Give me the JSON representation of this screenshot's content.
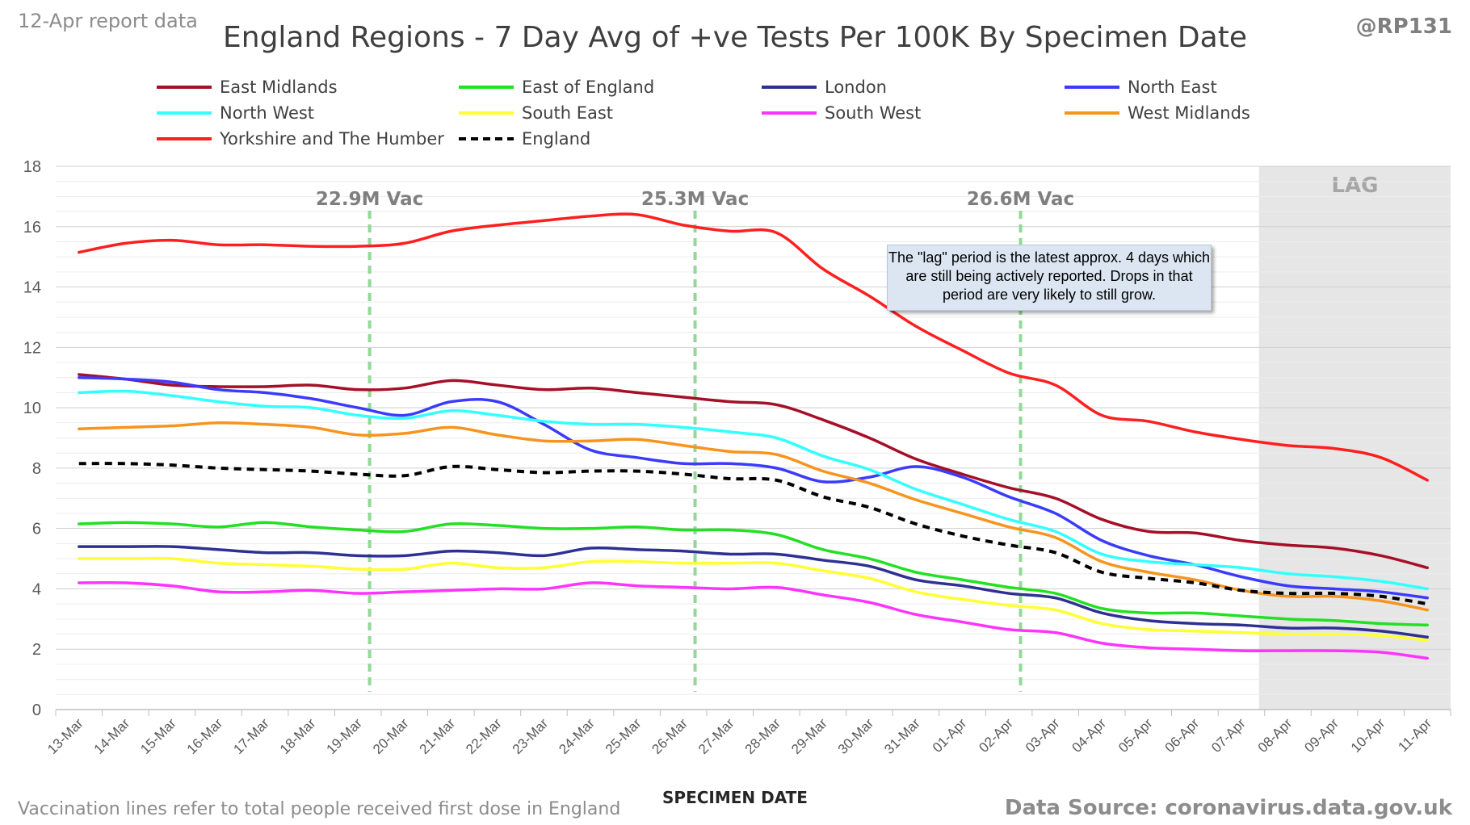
{
  "report_label": "12-Apr report data",
  "handle": "@RP131",
  "footnote": "Vaccination lines refer to total people received first dose in England",
  "source": "Data Source: coronavirus.data.gov.uk",
  "annotation_text": "The \"lag\" period is the latest approx. 4 days which are still being actively reported.  Drops in that period are very likely to still grow.",
  "chart_data": {
    "type": "line",
    "title": "England Regions - 7 Day Avg of +ve Tests Per 100K By Specimen Date",
    "xlabel": "SPECIMEN DATE",
    "ylabel": "",
    "ylim": [
      0,
      18
    ],
    "yticks": [
      0,
      2,
      4,
      6,
      8,
      10,
      12,
      14,
      16,
      18
    ],
    "grid": true,
    "legend_position": "top",
    "categories": [
      "13-Mar",
      "14-Mar",
      "15-Mar",
      "16-Mar",
      "17-Mar",
      "18-Mar",
      "19-Mar",
      "20-Mar",
      "21-Mar",
      "22-Mar",
      "23-Mar",
      "24-Mar",
      "25-Mar",
      "26-Mar",
      "27-Mar",
      "28-Mar",
      "29-Mar",
      "30-Mar",
      "31-Mar",
      "01-Apr",
      "02-Apr",
      "03-Apr",
      "04-Apr",
      "05-Apr",
      "06-Apr",
      "07-Apr",
      "08-Apr",
      "09-Apr",
      "10-Apr",
      "11-Apr"
    ],
    "lag_region": {
      "label": "LAG",
      "from": "08-Apr",
      "to": "11-Apr"
    },
    "vaccination_markers": [
      {
        "label": "22.9M Vac",
        "x": "19-Mar"
      },
      {
        "label": "25.3M Vac",
        "x": "26-Mar"
      },
      {
        "label": "26.6M Vac",
        "x": "02-Apr"
      }
    ],
    "series": [
      {
        "name": "East Midlands",
        "color": "#a50f28",
        "dashed": false,
        "values": [
          11.1,
          10.95,
          10.75,
          10.7,
          10.7,
          10.75,
          10.6,
          10.65,
          10.9,
          10.75,
          10.6,
          10.65,
          10.5,
          10.35,
          10.2,
          10.1,
          9.6,
          9.0,
          8.3,
          7.8,
          7.35,
          7.0,
          6.3,
          5.9,
          5.85,
          5.6,
          5.45,
          5.35,
          5.1,
          4.7
        ]
      },
      {
        "name": "East of England",
        "color": "#22e022",
        "dashed": false,
        "values": [
          6.15,
          6.2,
          6.15,
          6.05,
          6.2,
          6.05,
          5.95,
          5.9,
          6.15,
          6.1,
          6.0,
          6.0,
          6.05,
          5.95,
          5.95,
          5.8,
          5.3,
          5.0,
          4.55,
          4.3,
          4.05,
          3.85,
          3.35,
          3.2,
          3.2,
          3.1,
          3.0,
          2.95,
          2.85,
          2.8
        ]
      },
      {
        "name": "London",
        "color": "#2e3192",
        "dashed": false,
        "values": [
          5.4,
          5.4,
          5.4,
          5.3,
          5.2,
          5.2,
          5.1,
          5.1,
          5.25,
          5.2,
          5.1,
          5.35,
          5.3,
          5.25,
          5.15,
          5.15,
          4.95,
          4.75,
          4.3,
          4.1,
          3.85,
          3.7,
          3.2,
          2.95,
          2.85,
          2.8,
          2.7,
          2.7,
          2.6,
          2.4
        ]
      },
      {
        "name": "North East",
        "color": "#3b3bff",
        "dashed": false,
        "values": [
          11.0,
          10.95,
          10.85,
          10.6,
          10.5,
          10.3,
          10.0,
          9.75,
          10.2,
          10.2,
          9.45,
          8.6,
          8.35,
          8.15,
          8.15,
          8.0,
          7.55,
          7.7,
          8.05,
          7.7,
          7.05,
          6.5,
          5.6,
          5.1,
          4.8,
          4.4,
          4.1,
          4.0,
          3.9,
          3.7
        ]
      },
      {
        "name": "North West",
        "color": "#33ffff",
        "dashed": false,
        "values": [
          10.5,
          10.55,
          10.4,
          10.2,
          10.05,
          10.0,
          9.75,
          9.65,
          9.9,
          9.75,
          9.55,
          9.45,
          9.45,
          9.35,
          9.2,
          9.0,
          8.4,
          7.95,
          7.3,
          6.8,
          6.3,
          5.9,
          5.15,
          4.9,
          4.8,
          4.7,
          4.5,
          4.4,
          4.25,
          4.0
        ]
      },
      {
        "name": "South East",
        "color": "#ffff33",
        "dashed": false,
        "values": [
          5.0,
          5.0,
          5.0,
          4.85,
          4.8,
          4.75,
          4.65,
          4.65,
          4.85,
          4.7,
          4.7,
          4.9,
          4.9,
          4.85,
          4.85,
          4.85,
          4.6,
          4.35,
          3.9,
          3.65,
          3.45,
          3.3,
          2.85,
          2.65,
          2.6,
          2.55,
          2.5,
          2.5,
          2.45,
          2.3
        ]
      },
      {
        "name": "South West",
        "color": "#ff33ff",
        "dashed": false,
        "values": [
          4.2,
          4.2,
          4.1,
          3.9,
          3.9,
          3.95,
          3.85,
          3.9,
          3.95,
          4.0,
          4.0,
          4.2,
          4.1,
          4.05,
          4.0,
          4.05,
          3.8,
          3.55,
          3.15,
          2.9,
          2.65,
          2.55,
          2.2,
          2.05,
          2.0,
          1.95,
          1.95,
          1.95,
          1.9,
          1.7
        ]
      },
      {
        "name": "West Midlands",
        "color": "#f7941d",
        "dashed": false,
        "values": [
          9.3,
          9.35,
          9.4,
          9.5,
          9.45,
          9.35,
          9.1,
          9.15,
          9.35,
          9.1,
          8.9,
          8.9,
          8.95,
          8.75,
          8.55,
          8.45,
          7.9,
          7.5,
          6.95,
          6.5,
          6.05,
          5.7,
          4.9,
          4.55,
          4.3,
          3.95,
          3.75,
          3.75,
          3.6,
          3.3
        ]
      },
      {
        "name": "Yorkshire and The Humber",
        "color": "#ff1f1f",
        "dashed": false,
        "values": [
          15.15,
          15.45,
          15.55,
          15.4,
          15.4,
          15.35,
          15.35,
          15.45,
          15.85,
          16.05,
          16.2,
          16.35,
          16.4,
          16.05,
          15.85,
          15.8,
          14.6,
          13.7,
          12.7,
          11.9,
          11.15,
          10.75,
          9.75,
          9.55,
          9.2,
          8.95,
          8.75,
          8.65,
          8.35,
          7.6
        ]
      },
      {
        "name": "England",
        "color": "#000000",
        "dashed": true,
        "values": [
          8.15,
          8.15,
          8.1,
          8.0,
          7.95,
          7.9,
          7.8,
          7.75,
          8.05,
          7.95,
          7.85,
          7.9,
          7.9,
          7.8,
          7.65,
          7.6,
          7.05,
          6.7,
          6.15,
          5.75,
          5.45,
          5.2,
          4.55,
          4.35,
          4.2,
          3.95,
          3.85,
          3.85,
          3.75,
          3.5
        ]
      }
    ]
  }
}
